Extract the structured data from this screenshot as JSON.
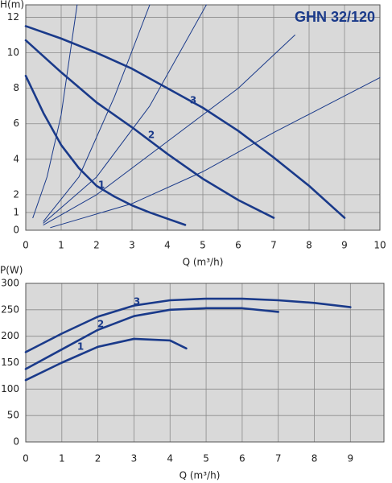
{
  "chart_data": [
    {
      "type": "line",
      "title": "GHN 32/120",
      "y_label": "H(m)",
      "x_label": "Q (m³/h)",
      "xlim": [
        0,
        10
      ],
      "xticks": [
        0,
        1,
        2,
        3,
        4,
        5,
        6,
        7,
        8,
        9,
        10
      ],
      "ylim": [
        0,
        12.7
      ],
      "yticks": [
        0,
        1,
        2,
        4,
        6,
        8,
        10,
        12
      ],
      "grid": true,
      "series": [
        {
          "name": "1",
          "color": "#1a3a8a",
          "line_width": 2.6,
          "x": [
            0,
            0.5,
            1,
            1.5,
            2,
            2.5,
            3,
            3.5,
            4,
            4.5
          ],
          "values": [
            8.7,
            6.6,
            4.8,
            3.5,
            2.5,
            1.9,
            1.4,
            1.0,
            0.65,
            0.3
          ]
        },
        {
          "name": "2",
          "color": "#1a3a8a",
          "line_width": 2.6,
          "x": [
            0,
            1,
            2,
            3,
            4,
            5,
            6,
            7
          ],
          "values": [
            10.7,
            8.9,
            7.2,
            5.8,
            4.3,
            2.9,
            1.7,
            0.7
          ]
        },
        {
          "name": "3",
          "color": "#1a3a8a",
          "line_width": 2.6,
          "x": [
            0,
            1,
            2,
            3,
            4,
            5,
            6,
            7,
            8,
            9
          ],
          "values": [
            11.5,
            10.8,
            10.0,
            9.1,
            8.0,
            6.9,
            5.6,
            4.1,
            2.5,
            0.7
          ]
        },
        {
          "color": "#1a3a8a",
          "line_width": 1,
          "x": [
            0.2,
            0.6,
            1,
            1.45
          ],
          "values": [
            0.7,
            3,
            6.5,
            12.7
          ]
        },
        {
          "color": "#1a3a8a",
          "line_width": 1,
          "x": [
            0.5,
            1.5,
            2.5,
            3.5
          ],
          "values": [
            0.5,
            3,
            7.5,
            12.7
          ]
        },
        {
          "color": "#1a3a8a",
          "line_width": 1,
          "x": [
            0.5,
            2,
            3.5,
            5.1
          ],
          "values": [
            0.4,
            3,
            7,
            12.7
          ]
        },
        {
          "color": "#1a3a8a",
          "line_width": 1,
          "x": [
            0.5,
            2,
            4,
            6,
            7.6
          ],
          "values": [
            0.3,
            2,
            5,
            8,
            11
          ]
        },
        {
          "color": "#1a3a8a",
          "line_width": 1,
          "x": [
            0.7,
            3,
            5,
            7,
            10
          ],
          "values": [
            0.15,
            1.5,
            3.3,
            5.5,
            8.6
          ]
        }
      ]
    },
    {
      "type": "line",
      "y_label": "P(W)",
      "x_label": "Q (m³/h)",
      "xlim": [
        0,
        9.93
      ],
      "xticks": [
        0,
        1,
        2,
        3,
        4,
        5,
        6,
        7,
        8,
        9
      ],
      "ylim": [
        0,
        300
      ],
      "yticks": [
        0,
        50,
        100,
        150,
        200,
        250,
        300
      ],
      "grid": true,
      "series": [
        {
          "name": "1",
          "color": "#1a3a8a",
          "line_width": 2.6,
          "x": [
            0,
            1,
            2,
            3,
            4,
            4.45
          ],
          "values": [
            117,
            150,
            180,
            195,
            192,
            177
          ]
        },
        {
          "name": "2",
          "color": "#1a3a8a",
          "line_width": 2.6,
          "x": [
            0,
            1,
            2,
            3,
            4,
            5,
            6,
            7
          ],
          "values": [
            138,
            175,
            212,
            238,
            250,
            253,
            253,
            246
          ]
        },
        {
          "name": "3",
          "color": "#1a3a8a",
          "line_width": 2.6,
          "x": [
            0,
            1,
            2,
            3,
            4,
            5,
            6,
            7,
            8,
            9
          ],
          "values": [
            170,
            205,
            237,
            258,
            268,
            271,
            271,
            268,
            263,
            255
          ]
        }
      ]
    }
  ]
}
